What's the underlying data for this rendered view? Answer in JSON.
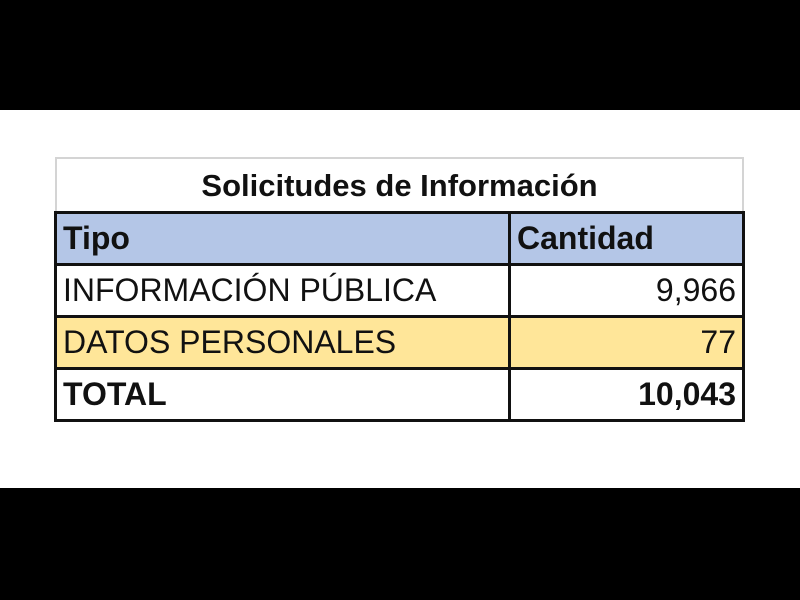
{
  "table": {
    "title": "Solicitudes de Información",
    "header": [
      "Tipo",
      "Cantidad"
    ],
    "rows": [
      [
        "INFORMACIÓN PÚBLICA",
        "9,966"
      ],
      [
        "DATOS PERSONALES",
        "77"
      ],
      [
        "TOTAL",
        "10,043"
      ]
    ]
  }
}
